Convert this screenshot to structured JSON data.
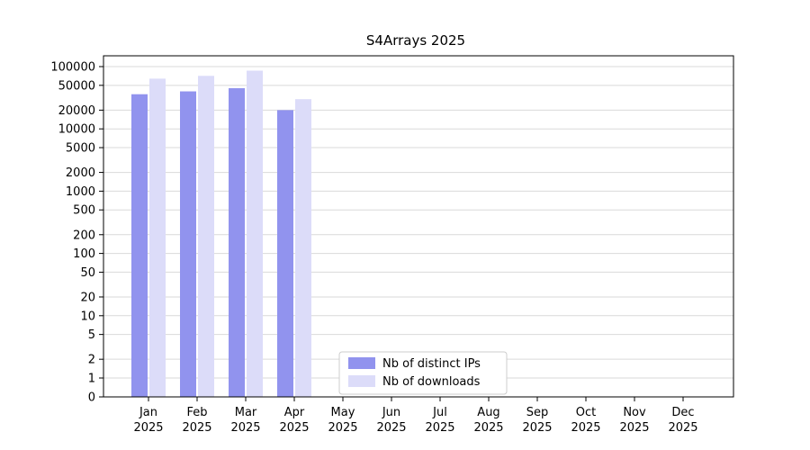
{
  "title": "S4Arrays 2025",
  "chart_data": {
    "type": "bar",
    "title": "S4Arrays 2025",
    "categories": [
      "Jan",
      "Feb",
      "Mar",
      "Apr",
      "May",
      "Jun",
      "Jul",
      "Aug",
      "Sep",
      "Oct",
      "Nov",
      "Dec"
    ],
    "year": "2025",
    "yscale": "log",
    "yticks": [
      0,
      1,
      2,
      5,
      10,
      20,
      50,
      100,
      200,
      500,
      1000,
      2000,
      5000,
      10000,
      20000,
      50000,
      100000
    ],
    "ylim": [
      0,
      150000
    ],
    "grid": true,
    "legend_position": "inside-bottom-center",
    "series": [
      {
        "name": "Nb of distinct IPs",
        "color": "#9193ee",
        "values": [
          36000,
          40000,
          45000,
          20000,
          0,
          0,
          0,
          0,
          0,
          0,
          0,
          0
        ]
      },
      {
        "name": "Nb of downloads",
        "color": "#dcdcf9",
        "values": [
          64000,
          71000,
          86000,
          30000,
          0,
          0,
          0,
          0,
          0,
          0,
          0,
          0
        ]
      }
    ]
  },
  "colors": {
    "grid": "#d9d9d9",
    "axis": "#000000",
    "legend_border": "#cccccc",
    "background": "#ffffff"
  }
}
